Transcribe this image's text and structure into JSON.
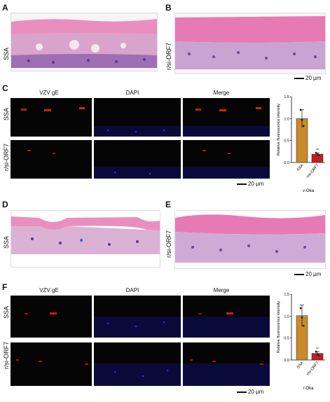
{
  "panels": {
    "A": {
      "label": "A",
      "row_label": "SSA"
    },
    "B": {
      "label": "B",
      "row_label": "r/si-ORF7",
      "scale": "20 μm"
    },
    "C": {
      "label": "C",
      "headers": [
        "VZV gE",
        "DAPI",
        "Merge"
      ],
      "rows": [
        "SSA",
        "r/si-ORF7"
      ],
      "scale": "20 μm"
    },
    "D": {
      "label": "D",
      "row_label": "SSA"
    },
    "E": {
      "label": "E",
      "row_label": "r/si-ORF7",
      "scale": "20 μm"
    },
    "F": {
      "label": "F",
      "headers": [
        "VZV gE",
        "DAPI",
        "Merge"
      ],
      "rows": [
        "SSA",
        "r/si-ORF7"
      ],
      "scale": "20 μm"
    }
  },
  "chart_data": [
    {
      "type": "bar",
      "panel": "C",
      "categories": [
        "SSA",
        "r/si-ORF7"
      ],
      "values": [
        1.0,
        0.19
      ],
      "points": [
        [
          1.2,
          0.97,
          0.83
        ],
        [
          0.22,
          0.18,
          0.17
        ]
      ],
      "errors": [
        0.2,
        0.03
      ],
      "significance": [
        "",
        "**"
      ],
      "ylabel": "Relative fluorescence intensity",
      "xlabel": "v-Oka",
      "ylim": [
        0,
        1.5
      ],
      "yticks": [
        "0.0",
        "0.5",
        "1.0",
        "1.5"
      ],
      "colors": [
        "#c98a2b",
        "#c71c1c"
      ]
    },
    {
      "type": "bar",
      "panel": "F",
      "categories": [
        "SSA",
        "r/si-ORF7"
      ],
      "values": [
        1.01,
        0.15
      ],
      "points": [
        [
          1.18,
          0.97,
          0.78
        ],
        [
          0.19,
          0.13,
          0.1
        ]
      ],
      "errors": [
        0.24,
        0.04
      ],
      "significance": [
        "",
        "**"
      ],
      "ylabel": "Relative fluorescence intensity",
      "xlabel": "r-Oka",
      "ylim": [
        0,
        1.5
      ],
      "yticks": [
        "0.0",
        "0.5",
        "1.0",
        "1.5"
      ],
      "colors": [
        "#c98a2b",
        "#c71c1c"
      ]
    }
  ]
}
